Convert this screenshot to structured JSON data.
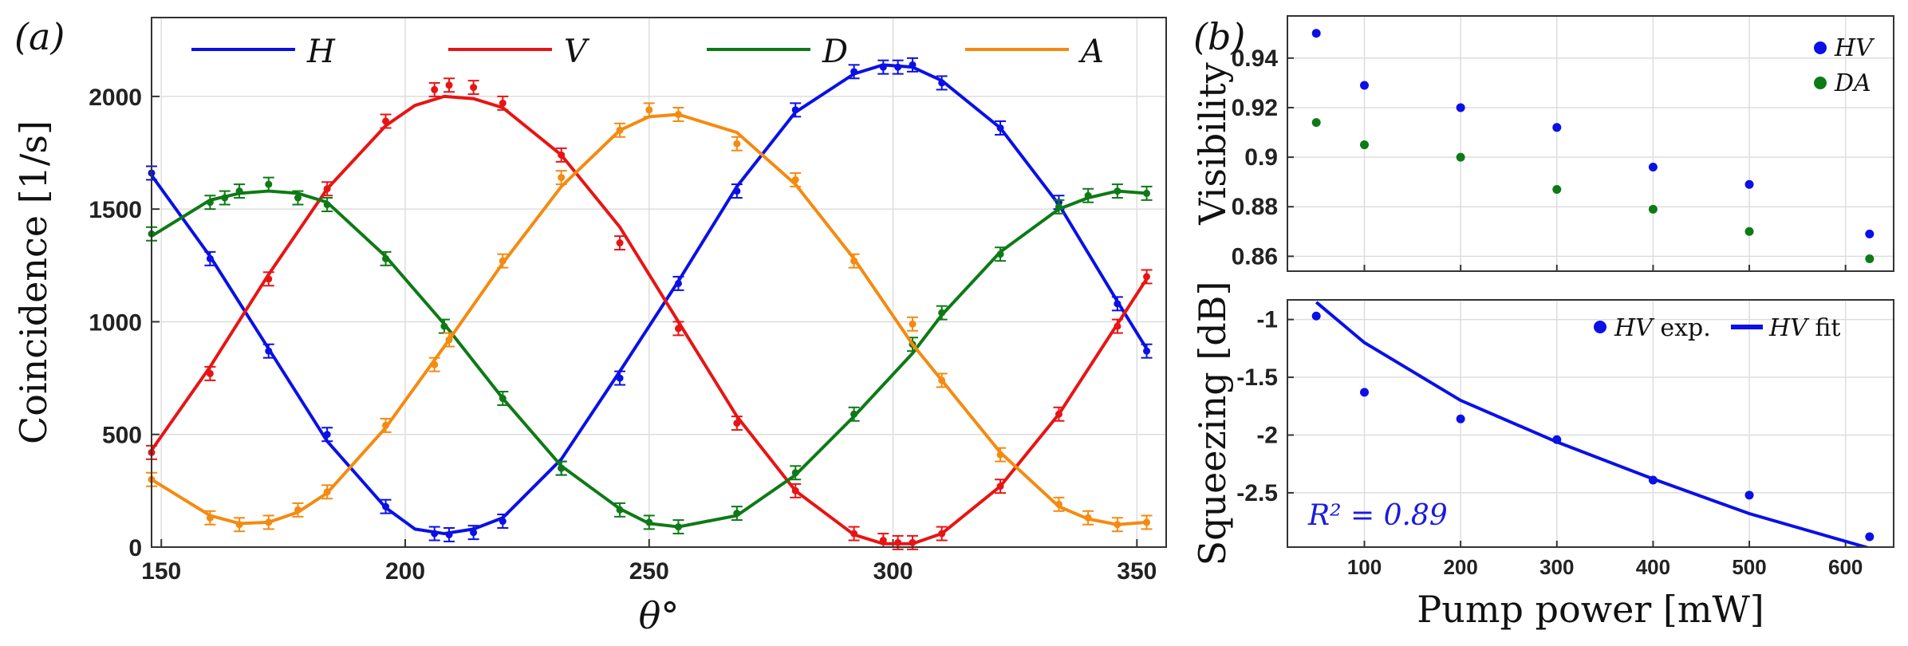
{
  "chart_data": [
    {
      "type": "line",
      "panel_label": "(a)",
      "xlabel": "θ°",
      "ylabel": "Coincidence [1/s]",
      "xlim": [
        148,
        356
      ],
      "ylim": [
        0,
        2350
      ],
      "xticks": [
        150,
        200,
        250,
        300,
        350
      ],
      "yticks": [
        0,
        500,
        1000,
        1500,
        2000
      ],
      "grid": true,
      "legend_position": "top",
      "series": [
        {
          "name": "H",
          "color": "#0a10e6",
          "fit_x": [
            148,
            160,
            172,
            184,
            196,
            202,
            208,
            214,
            220,
            232,
            244,
            256,
            268,
            280,
            292,
            298,
            304,
            310,
            322,
            334,
            346,
            352
          ],
          "fit_y": [
            1650,
            1290,
            880,
            470,
            175,
            80,
            60,
            80,
            130,
            390,
            780,
            1180,
            1600,
            1930,
            2100,
            2140,
            2130,
            2070,
            1860,
            1520,
            1090,
            880
          ],
          "points_x": [
            148,
            160,
            172,
            184,
            196,
            206,
            209,
            214,
            220,
            232,
            244,
            256,
            268,
            280,
            292,
            298,
            301,
            304,
            310,
            322,
            334,
            346,
            352
          ],
          "points_y": [
            1660,
            1280,
            870,
            500,
            180,
            60,
            55,
            65,
            115,
            350,
            750,
            1170,
            1580,
            1940,
            2110,
            2130,
            2130,
            2140,
            2060,
            1860,
            1530,
            1080,
            870
          ]
        },
        {
          "name": "V",
          "color": "#e81414",
          "fit_x": [
            148,
            160,
            172,
            184,
            196,
            202,
            208,
            214,
            220,
            232,
            244,
            256,
            268,
            280,
            292,
            298,
            304,
            310,
            322,
            334,
            346,
            352
          ],
          "fit_y": [
            430,
            800,
            1210,
            1590,
            1870,
            1960,
            2000,
            1990,
            1950,
            1740,
            1420,
            1000,
            580,
            250,
            55,
            15,
            15,
            60,
            270,
            590,
            990,
            1190
          ],
          "points_x": [
            148,
            160,
            172,
            184,
            196,
            206,
            209,
            214,
            220,
            232,
            244,
            256,
            268,
            280,
            292,
            298,
            301,
            304,
            310,
            322,
            334,
            346,
            352
          ],
          "points_y": [
            420,
            770,
            1190,
            1590,
            1890,
            2030,
            2050,
            2040,
            1970,
            1740,
            1350,
            970,
            550,
            250,
            60,
            30,
            20,
            20,
            60,
            270,
            590,
            980,
            1200
          ]
        },
        {
          "name": "D",
          "color": "#0e7a16",
          "fit_x": [
            148,
            160,
            166,
            172,
            178,
            184,
            196,
            208,
            220,
            232,
            244,
            250,
            256,
            268,
            280,
            292,
            304,
            310,
            322,
            334,
            340,
            346,
            352
          ],
          "fit_y": [
            1380,
            1540,
            1570,
            1580,
            1570,
            1530,
            1290,
            990,
            660,
            360,
            170,
            105,
            90,
            140,
            320,
            580,
            860,
            1030,
            1310,
            1500,
            1550,
            1580,
            1570
          ],
          "points_x": [
            148,
            160,
            163,
            166,
            172,
            178,
            184,
            196,
            208,
            220,
            232,
            244,
            250,
            256,
            268,
            280,
            292,
            304,
            310,
            322,
            334,
            340,
            346,
            352
          ],
          "points_y": [
            1390,
            1530,
            1550,
            1580,
            1610,
            1550,
            1520,
            1280,
            980,
            660,
            350,
            165,
            110,
            90,
            150,
            330,
            590,
            900,
            1040,
            1300,
            1510,
            1560,
            1580,
            1570
          ]
        },
        {
          "name": "A",
          "color": "#f58a10",
          "fit_x": [
            148,
            160,
            166,
            172,
            178,
            184,
            196,
            208,
            220,
            232,
            244,
            250,
            256,
            268,
            280,
            292,
            304,
            310,
            322,
            334,
            340,
            346,
            352
          ],
          "fit_y": [
            300,
            140,
            105,
            110,
            155,
            240,
            530,
            890,
            1260,
            1600,
            1850,
            1910,
            1920,
            1840,
            1610,
            1280,
            900,
            740,
            420,
            180,
            125,
            100,
            110
          ],
          "points_x": [
            148,
            160,
            166,
            172,
            178,
            184,
            196,
            206,
            209,
            220,
            232,
            244,
            250,
            256,
            268,
            280,
            292,
            304,
            310,
            322,
            334,
            340,
            346,
            352
          ],
          "points_y": [
            300,
            130,
            100,
            110,
            165,
            245,
            540,
            810,
            920,
            1270,
            1640,
            1850,
            1940,
            1920,
            1790,
            1630,
            1270,
            990,
            740,
            410,
            190,
            130,
            100,
            110
          ]
        }
      ]
    },
    {
      "type": "scatter",
      "panel_label": "(b)",
      "xlabel": "",
      "ylabel": "Visibility",
      "xlim": [
        20,
        650
      ],
      "ylim": [
        0.854,
        0.957
      ],
      "yticks": [
        0.86,
        0.88,
        0.9,
        0.92,
        0.94
      ],
      "ytick_labels": [
        "0.86",
        "0.88",
        "0.9",
        "0.92",
        "0.94"
      ],
      "grid": true,
      "legend_position": "top-right",
      "series": [
        {
          "name": "HV",
          "color": "#0a10e6",
          "x": [
            50,
            100,
            200,
            300,
            400,
            500,
            625
          ],
          "y": [
            0.95,
            0.929,
            0.92,
            0.912,
            0.896,
            0.889,
            0.869
          ]
        },
        {
          "name": "DA",
          "color": "#0e7a16",
          "x": [
            50,
            100,
            200,
            300,
            400,
            500,
            625
          ],
          "y": [
            0.914,
            0.905,
            0.9,
            0.887,
            0.879,
            0.87,
            0.859
          ]
        }
      ]
    },
    {
      "type": "scatter",
      "xlabel": "Pump power [mW]",
      "ylabel": "Squeezing [dB]",
      "xlim": [
        20,
        650
      ],
      "ylim": [
        -2.97,
        -0.83
      ],
      "xticks": [
        100,
        200,
        300,
        400,
        500,
        600
      ],
      "yticks": [
        -2.5,
        -2,
        -1.5,
        -1
      ],
      "ytick_labels": [
        "-2.5",
        "-2",
        "-1.5",
        "-1"
      ],
      "grid": true,
      "legend_position": "top-right",
      "annotation": "R² = 0.89",
      "series": [
        {
          "name": "HV exp.",
          "legend_italic": "HV",
          "legend_rest": " exp.",
          "color": "#0a10e6",
          "x": [
            50,
            100,
            200,
            300,
            400,
            500,
            625
          ],
          "y": [
            -0.97,
            -1.63,
            -1.86,
            -2.04,
            -2.39,
            -2.52,
            -2.88
          ]
        },
        {
          "name": "HV fit",
          "legend_italic": "HV",
          "legend_rest": " fit",
          "color": "#0a10e6",
          "style": "line",
          "x": [
            50,
            100,
            200,
            300,
            400,
            500,
            625
          ],
          "y": [
            -0.85,
            -1.2,
            -1.7,
            -2.06,
            -2.38,
            -2.68,
            -2.98
          ]
        }
      ]
    }
  ]
}
